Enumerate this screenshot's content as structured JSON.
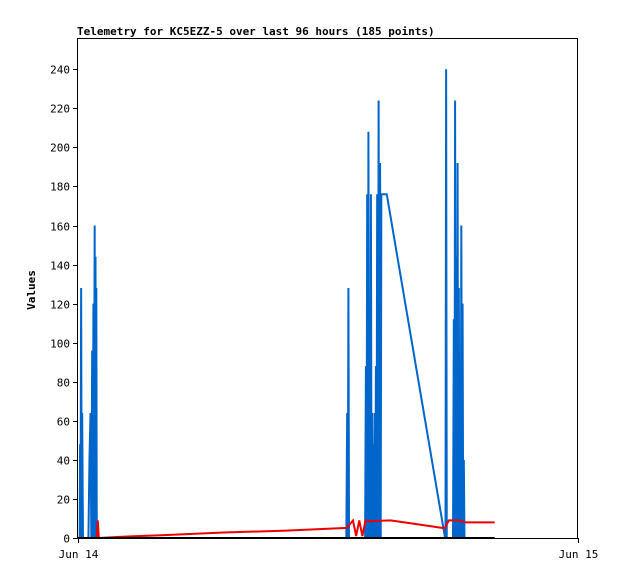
{
  "chart_data": {
    "type": "line",
    "title": "Telemetry for KC5EZZ-5 over last 96 hours (185 points)",
    "ylabel": "Values",
    "xlabel": "",
    "ylim": [
      0,
      256
    ],
    "xlim": [
      0,
      24
    ],
    "y_ticks": [
      0,
      20,
      40,
      60,
      80,
      100,
      120,
      140,
      160,
      180,
      200,
      220,
      240
    ],
    "x_ticks": [
      {
        "value": 0,
        "label": "Jun 14"
      },
      {
        "value": 24,
        "label": "Jun 15"
      }
    ],
    "grid": false,
    "legend": "none",
    "series": [
      {
        "color": "#0066cc",
        "points": [
          [
            0.08,
            0
          ],
          [
            0.1,
            48
          ],
          [
            0.12,
            0
          ],
          [
            0.15,
            128
          ],
          [
            0.18,
            0
          ],
          [
            0.2,
            64
          ],
          [
            0.24,
            0
          ],
          [
            0.5,
            0
          ],
          [
            0.55,
            40
          ],
          [
            0.6,
            64
          ],
          [
            0.64,
            0
          ],
          [
            0.68,
            96
          ],
          [
            0.71,
            0
          ],
          [
            0.74,
            120
          ],
          [
            0.76,
            0
          ],
          [
            0.8,
            160
          ],
          [
            0.82,
            0
          ],
          [
            0.84,
            144
          ],
          [
            0.86,
            0
          ],
          [
            0.88,
            128
          ],
          [
            0.9,
            0
          ],
          [
            12.88,
            0
          ],
          [
            12.92,
            64
          ],
          [
            12.95,
            0
          ],
          [
            12.98,
            128
          ],
          [
            13.01,
            0
          ],
          [
            13.78,
            0
          ],
          [
            13.82,
            88
          ],
          [
            13.85,
            0
          ],
          [
            13.88,
            176
          ],
          [
            13.91,
            0
          ],
          [
            13.94,
            208
          ],
          [
            13.97,
            0
          ],
          [
            14.0,
            104
          ],
          [
            14.03,
            0
          ],
          [
            14.06,
            176
          ],
          [
            14.09,
            0
          ],
          [
            14.12,
            64
          ],
          [
            14.15,
            0
          ],
          [
            14.18,
            48
          ],
          [
            14.21,
            0
          ],
          [
            14.24,
            64
          ],
          [
            14.27,
            0
          ],
          [
            14.3,
            88
          ],
          [
            14.33,
            0
          ],
          [
            14.36,
            176
          ],
          [
            14.39,
            0
          ],
          [
            14.43,
            224
          ],
          [
            14.46,
            0
          ],
          [
            14.5,
            192
          ],
          [
            14.53,
            0
          ],
          [
            14.56,
            176
          ],
          [
            14.66,
            176
          ],
          [
            14.82,
            176
          ],
          [
            17.62,
            0
          ],
          [
            17.64,
            0
          ],
          [
            17.67,
            240
          ],
          [
            17.7,
            0
          ],
          [
            18.0,
            0
          ],
          [
            18.04,
            112
          ],
          [
            18.07,
            0
          ],
          [
            18.1,
            224
          ],
          [
            18.13,
            0
          ],
          [
            18.16,
            144
          ],
          [
            18.19,
            0
          ],
          [
            18.22,
            192
          ],
          [
            18.25,
            0
          ],
          [
            18.28,
            128
          ],
          [
            18.31,
            0
          ],
          [
            18.34,
            80
          ],
          [
            18.37,
            0
          ],
          [
            18.4,
            160
          ],
          [
            18.43,
            0
          ],
          [
            18.46,
            120
          ],
          [
            18.49,
            0
          ],
          [
            18.52,
            40
          ],
          [
            18.55,
            0
          ]
        ]
      },
      {
        "color": "#ee0000",
        "points": [
          [
            0.9,
            0
          ],
          [
            0.95,
            9
          ],
          [
            1.0,
            0
          ],
          [
            2.0,
            0.6
          ],
          [
            4.0,
            1.4
          ],
          [
            7.0,
            2.8
          ],
          [
            10.0,
            3.8
          ],
          [
            12.9,
            5.2
          ],
          [
            13.2,
            9
          ],
          [
            13.35,
            1
          ],
          [
            13.5,
            9
          ],
          [
            13.65,
            1
          ],
          [
            13.8,
            9
          ],
          [
            14.0,
            8.6
          ],
          [
            15.0,
            9
          ],
          [
            16.0,
            7.5
          ],
          [
            17.6,
            5
          ],
          [
            17.8,
            9
          ],
          [
            18.3,
            9
          ],
          [
            18.6,
            8
          ],
          [
            20.0,
            8
          ]
        ]
      },
      {
        "color": "#000000",
        "points": [
          [
            0.0,
            0
          ],
          [
            20.0,
            0
          ]
        ]
      }
    ]
  }
}
